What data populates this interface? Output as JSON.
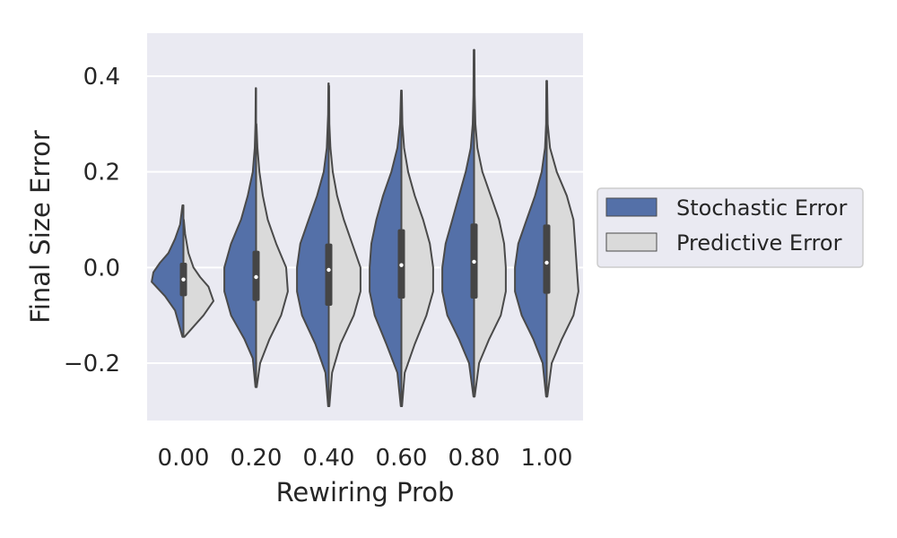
{
  "chart_data": {
    "type": "violin",
    "xlabel": "Rewiring Prob",
    "ylabel": "Final Size Error",
    "categories": [
      "0.00",
      "0.20",
      "0.40",
      "0.60",
      "0.80",
      "1.00"
    ],
    "ylim": [
      -0.32,
      0.49
    ],
    "yticks": [
      -0.2,
      0.0,
      0.2,
      0.4
    ],
    "ytick_labels": [
      "−0.2",
      "0.0",
      "0.2",
      "0.4"
    ],
    "grid": true,
    "legend_position": "right",
    "series": [
      {
        "name": "Stochastic Error",
        "color": "#5470a8",
        "side": "left",
        "violins": [
          {
            "y": [
              -0.145,
              -0.09,
              -0.06,
              -0.03,
              -0.01,
              0.01,
              0.03,
              0.06,
              0.09,
              0.13
            ],
            "w": [
              0.03,
              0.25,
              0.55,
              0.95,
              0.9,
              0.7,
              0.45,
              0.25,
              0.1,
              0.03
            ]
          },
          {
            "y": [
              -0.25,
              -0.19,
              -0.15,
              -0.1,
              -0.05,
              0.0,
              0.05,
              0.1,
              0.15,
              0.2,
              0.25,
              0.3,
              0.375
            ],
            "w": [
              0.02,
              0.1,
              0.35,
              0.75,
              0.95,
              0.95,
              0.75,
              0.45,
              0.25,
              0.1,
              0.04,
              0.02,
              0.01
            ]
          },
          {
            "y": [
              -0.29,
              -0.22,
              -0.16,
              -0.1,
              -0.05,
              0.0,
              0.05,
              0.1,
              0.15,
              0.2,
              0.25,
              0.32,
              0.385
            ],
            "w": [
              0.02,
              0.1,
              0.4,
              0.8,
              0.95,
              0.95,
              0.85,
              0.6,
              0.35,
              0.15,
              0.06,
              0.02,
              0.01
            ]
          },
          {
            "y": [
              -0.29,
              -0.22,
              -0.16,
              -0.1,
              -0.05,
              0.0,
              0.05,
              0.1,
              0.15,
              0.2,
              0.25,
              0.3,
              0.37
            ],
            "w": [
              0.02,
              0.12,
              0.45,
              0.8,
              0.95,
              0.95,
              0.9,
              0.75,
              0.55,
              0.3,
              0.12,
              0.04,
              0.01
            ]
          },
          {
            "y": [
              -0.27,
              -0.2,
              -0.15,
              -0.1,
              -0.05,
              0.0,
              0.05,
              0.1,
              0.15,
              0.2,
              0.25,
              0.3,
              0.36,
              0.455
            ],
            "w": [
              0.02,
              0.15,
              0.45,
              0.8,
              0.95,
              0.95,
              0.85,
              0.65,
              0.45,
              0.25,
              0.1,
              0.04,
              0.02,
              0.01
            ]
          },
          {
            "y": [
              -0.27,
              -0.2,
              -0.15,
              -0.1,
              -0.05,
              0.0,
              0.05,
              0.1,
              0.15,
              0.2,
              0.25,
              0.3,
              0.39
            ],
            "w": [
              0.02,
              0.12,
              0.4,
              0.75,
              0.95,
              0.95,
              0.85,
              0.6,
              0.35,
              0.15,
              0.05,
              0.02,
              0.01
            ]
          }
        ]
      },
      {
        "name": "Predictive Error",
        "color": "#dadada",
        "side": "right",
        "violins": [
          {
            "y": [
              -0.145,
              -0.1,
              -0.07,
              -0.04,
              -0.02,
              0.0,
              0.03,
              0.07,
              0.1
            ],
            "w": [
              0.03,
              0.6,
              0.9,
              0.75,
              0.5,
              0.3,
              0.15,
              0.05,
              0.01
            ]
          },
          {
            "y": [
              -0.25,
              -0.2,
              -0.15,
              -0.1,
              -0.05,
              0.0,
              0.05,
              0.1,
              0.15,
              0.2,
              0.25,
              0.3
            ],
            "w": [
              0.02,
              0.12,
              0.4,
              0.75,
              0.95,
              0.9,
              0.6,
              0.35,
              0.2,
              0.1,
              0.04,
              0.01
            ]
          },
          {
            "y": [
              -0.29,
              -0.22,
              -0.16,
              -0.1,
              -0.05,
              0.0,
              0.05,
              0.1,
              0.15,
              0.2,
              0.25,
              0.3,
              0.38
            ],
            "w": [
              0.02,
              0.1,
              0.35,
              0.75,
              0.95,
              0.95,
              0.7,
              0.45,
              0.25,
              0.12,
              0.05,
              0.02,
              0.01
            ]
          },
          {
            "y": [
              -0.29,
              -0.22,
              -0.16,
              -0.1,
              -0.05,
              0.0,
              0.05,
              0.1,
              0.15,
              0.2,
              0.25,
              0.3,
              0.37
            ],
            "w": [
              0.02,
              0.1,
              0.4,
              0.75,
              0.95,
              0.95,
              0.85,
              0.65,
              0.4,
              0.2,
              0.08,
              0.03,
              0.01
            ]
          },
          {
            "y": [
              -0.27,
              -0.2,
              -0.15,
              -0.1,
              -0.05,
              0.0,
              0.05,
              0.1,
              0.15,
              0.2,
              0.25,
              0.3,
              0.36,
              0.455
            ],
            "w": [
              0.02,
              0.15,
              0.45,
              0.8,
              0.95,
              0.95,
              0.9,
              0.75,
              0.5,
              0.25,
              0.1,
              0.04,
              0.02,
              0.01
            ]
          },
          {
            "y": [
              -0.27,
              -0.2,
              -0.15,
              -0.1,
              -0.05,
              0.0,
              0.05,
              0.1,
              0.15,
              0.2,
              0.25,
              0.3,
              0.39
            ],
            "w": [
              0.02,
              0.15,
              0.45,
              0.8,
              0.95,
              0.9,
              0.85,
              0.8,
              0.6,
              0.3,
              0.1,
              0.03,
              0.01
            ]
          }
        ]
      }
    ],
    "boxes": [
      {
        "q1": -0.06,
        "median": -0.025,
        "q3": 0.01
      },
      {
        "q1": -0.07,
        "median": -0.02,
        "q3": 0.035
      },
      {
        "q1": -0.08,
        "median": -0.005,
        "q3": 0.05
      },
      {
        "q1": -0.065,
        "median": 0.005,
        "q3": 0.08
      },
      {
        "q1": -0.065,
        "median": 0.012,
        "q3": 0.092
      },
      {
        "q1": -0.055,
        "median": 0.01,
        "q3": 0.09
      }
    ]
  },
  "colors": {
    "plot_background": "#eaeaf2",
    "grid": "#ffffff",
    "outline": "#4a4a4a",
    "box": "#454545",
    "median": "#ffffff"
  }
}
